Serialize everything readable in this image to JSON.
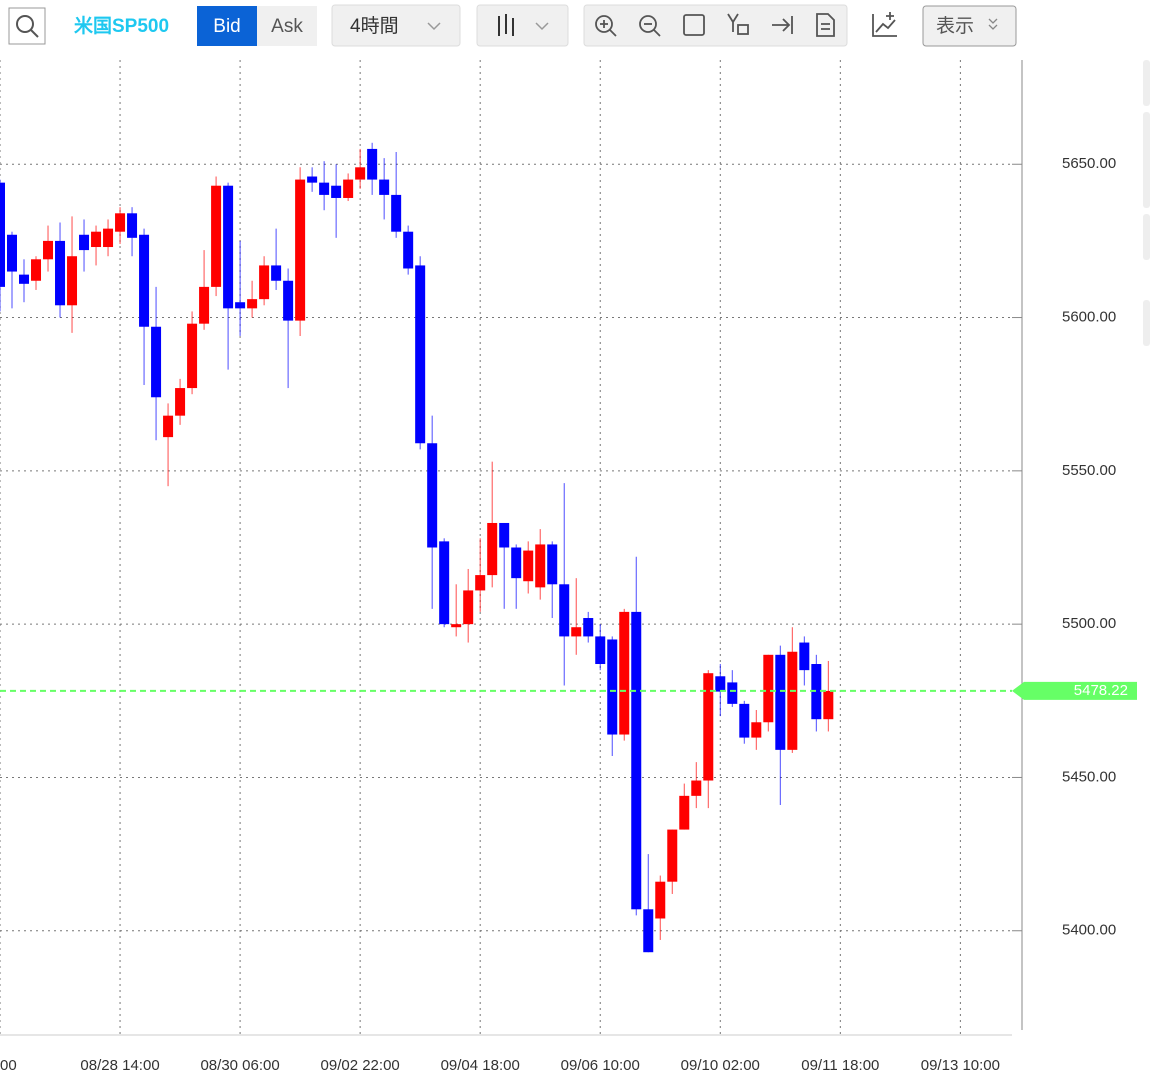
{
  "toolbar": {
    "symbol": "米国SP500",
    "bid": "Bid",
    "ask": "Ask",
    "interval": "4時間",
    "view": "表示"
  },
  "chart_data": {
    "type": "candlestick",
    "open": [
      5644,
      5627,
      5614,
      5612,
      5619,
      5625,
      5604,
      5627,
      5623,
      5623,
      5628,
      5634,
      5627,
      5597,
      5561,
      5568,
      5577,
      5598,
      5610,
      5643,
      5605,
      5603,
      5606,
      5617,
      5612,
      5599,
      5646,
      5644,
      5643,
      5639,
      5645,
      5655,
      5645,
      5640,
      5628,
      5617,
      5559,
      5527,
      5499,
      5500,
      5511,
      5516,
      5533,
      5525,
      5514,
      5512,
      5526,
      5513,
      5496,
      5502,
      5496,
      5495,
      5464,
      5504,
      5407,
      5404,
      5416,
      5433,
      5444,
      5449,
      5483,
      5481,
      5474,
      5463,
      5468,
      5490,
      5459,
      5494,
      5487,
      5469
    ],
    "high": [
      5645,
      5628,
      5619,
      5620,
      5630,
      5631,
      5633,
      5632,
      5630,
      5632,
      5636,
      5636,
      5629,
      5610,
      5572,
      5580,
      5602,
      5622,
      5646,
      5644,
      5625,
      5612,
      5620,
      5629,
      5616,
      5649,
      5649,
      5651,
      5650,
      5647,
      5655,
      5657,
      5652,
      5654,
      5630,
      5620,
      5568,
      5528,
      5513,
      5518,
      5528,
      5553,
      5533,
      5526,
      5527,
      5531,
      5527,
      5546,
      5515,
      5504,
      5500,
      5496,
      5505,
      5522,
      5425,
      5418,
      5433,
      5448,
      5455,
      5485,
      5487,
      5485,
      5475,
      5472,
      5490,
      5493,
      5499,
      5496,
      5490,
      5488
    ],
    "low": [
      5602,
      5603,
      5605,
      5609,
      5615,
      5600,
      5595,
      5615,
      5617,
      5620,
      5624,
      5620,
      5578,
      5560,
      5545,
      5565,
      5575,
      5596,
      5607,
      5583,
      5594,
      5600,
      5604,
      5609,
      5577,
      5594,
      5641,
      5635,
      5626,
      5638,
      5642,
      5640,
      5632,
      5626,
      5614,
      5557,
      5505,
      5499,
      5496,
      5494,
      5504,
      5512,
      5505,
      5505,
      5510,
      5508,
      5502,
      5480,
      5490,
      5494,
      5485,
      5457,
      5462,
      5405,
      5393,
      5397,
      5412,
      5433,
      5440,
      5440,
      5470,
      5473,
      5461,
      5459,
      5465,
      5441,
      5458,
      5480,
      5465,
      5465
    ],
    "close": [
      5610,
      5615,
      5611,
      5619,
      5625,
      5604,
      5620,
      5622,
      5628,
      5629,
      5634,
      5626,
      5597,
      5574,
      5568,
      5577,
      5598,
      5610,
      5643,
      5603,
      5603,
      5606,
      5617,
      5612,
      5599,
      5645,
      5644,
      5640,
      5639,
      5645,
      5649,
      5645,
      5640,
      5628,
      5616,
      5559,
      5525,
      5500,
      5500,
      5511,
      5516,
      5533,
      5525,
      5515,
      5524,
      5526,
      5513,
      5496,
      5499,
      5496,
      5487,
      5464,
      5504,
      5407,
      5393,
      5416,
      5433,
      5444,
      5449,
      5484,
      5478,
      5474,
      5463,
      5468,
      5490,
      5459,
      5491,
      5485,
      5469,
      5478.22
    ],
    "up_color": "#ff0000",
    "down_color": "#0000ff",
    "xlim": [
      0,
      84.3
    ],
    "xticks": [
      {
        "value": 0,
        "label": "00"
      },
      {
        "value": 10,
        "label": "08/28 14:00"
      },
      {
        "value": 20,
        "label": "08/30 06:00"
      },
      {
        "value": 30,
        "label": "09/02 22:00"
      },
      {
        "value": 40,
        "label": "09/04 18:00"
      },
      {
        "value": 50,
        "label": "09/06 10:00"
      },
      {
        "value": 60,
        "label": "09/10 02:00"
      },
      {
        "value": 70,
        "label": "09/11 18:00"
      },
      {
        "value": 80,
        "label": "09/13 10:00"
      }
    ],
    "ylim": [
      5366,
      5684
    ],
    "yticks": [
      {
        "value": 5400,
        "label": "5400.00"
      },
      {
        "value": 5450,
        "label": "5450.00"
      },
      {
        "value": 5500,
        "label": "5500.00"
      },
      {
        "value": 5550,
        "label": "5550.00"
      },
      {
        "value": 5600,
        "label": "5600.00"
      },
      {
        "value": 5650,
        "label": "5650.00"
      }
    ],
    "grid": true,
    "last_price": {
      "value": 5478.22,
      "label": "5478.22",
      "color": "#66ff66"
    }
  }
}
